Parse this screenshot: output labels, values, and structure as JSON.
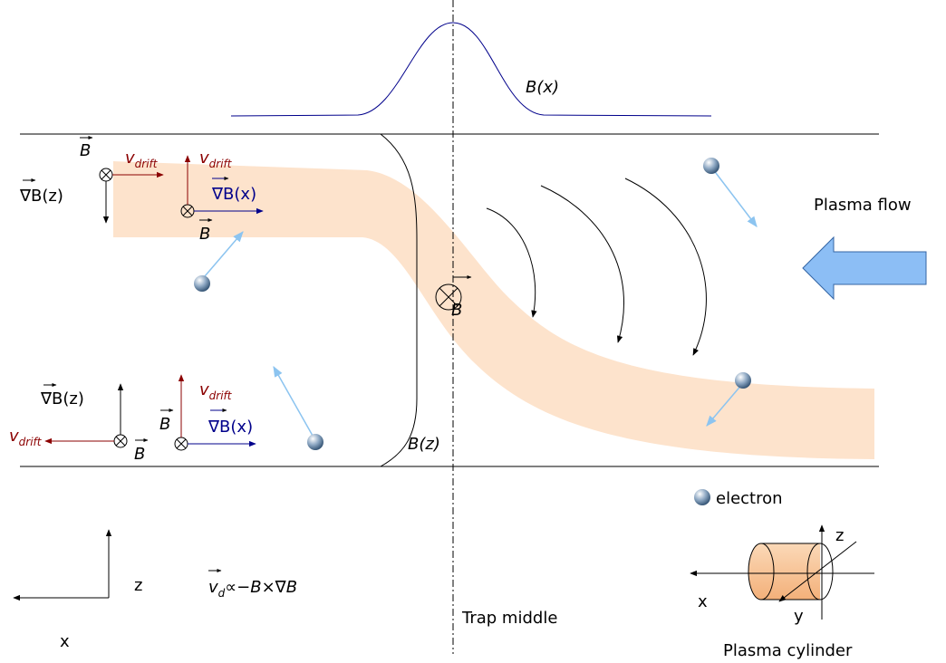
{
  "symbols": {
    "B": "B",
    "grad_z": "∇B(z)",
    "grad_x": "∇B(x)",
    "v": "v",
    "drift": "drift",
    "d": "d",
    "formula_rest": "∝−B×∇B"
  },
  "profiles": {
    "bx": "B(x)",
    "bz": "B(z)"
  },
  "plasma_flow": "Plasma flow",
  "legend": {
    "electron": "electron"
  },
  "trap_middle": "Trap middle",
  "frame_axes": {
    "z": "z",
    "x": "x"
  },
  "cylinder": {
    "title": "Plasma cylinder",
    "x": "x",
    "y": "y",
    "z": "z"
  }
}
